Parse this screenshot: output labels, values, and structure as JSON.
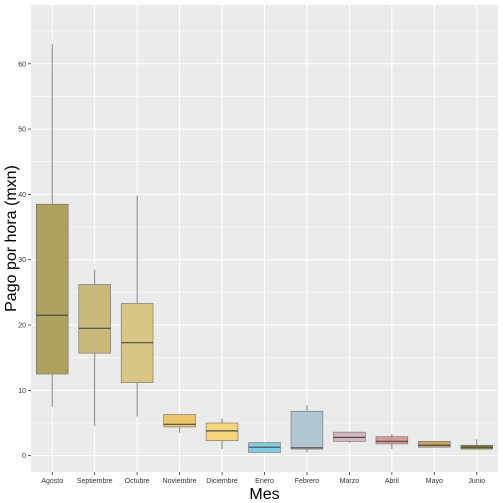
{
  "chart_data": {
    "type": "box",
    "xlabel": "Mes",
    "ylabel": "Pago por hora (mxn)",
    "ylim": [
      -2.5,
      69
    ],
    "yticks": [
      0,
      10,
      20,
      30,
      40,
      50,
      60
    ],
    "categories": [
      "Agosto",
      "Septiembre",
      "Octubre",
      "Noviembre",
      "Diciembre",
      "Enero",
      "Febrero",
      "Marzo",
      "Abril",
      "Mayo",
      "Junio"
    ],
    "boxes": [
      {
        "label": "Agosto",
        "min": 7.5,
        "q1": 12.5,
        "median": 21.5,
        "q3": 38.5,
        "max": 63.0,
        "color": "#ada35e"
      },
      {
        "label": "Septiembre",
        "min": 4.5,
        "q1": 15.7,
        "median": 19.5,
        "q3": 26.2,
        "max": 28.5,
        "color": "#c8b97a"
      },
      {
        "label": "Octubre",
        "min": 6.0,
        "q1": 11.2,
        "median": 17.3,
        "q3": 23.3,
        "max": 39.8,
        "color": "#d9c584"
      },
      {
        "label": "Noviembre",
        "min": 3.5,
        "q1": 4.4,
        "median": 4.8,
        "q3": 6.3,
        "max": 6.3,
        "color": "#ebc76a"
      },
      {
        "label": "Diciembre",
        "min": 1.0,
        "q1": 2.3,
        "median": 3.8,
        "q3": 5.0,
        "max": 5.7,
        "color": "#f5d67c"
      },
      {
        "label": "Enero",
        "min": 0.5,
        "q1": 0.5,
        "median": 1.3,
        "q3": 2.0,
        "max": 2.0,
        "color": "#7fcbe0"
      },
      {
        "label": "Febrero",
        "min": 0.5,
        "q1": 1.0,
        "median": 1.2,
        "q3": 6.8,
        "max": 7.7,
        "color": "#b3c7d2"
      },
      {
        "label": "Marzo",
        "min": 2.0,
        "q1": 2.2,
        "median": 2.8,
        "q3": 3.6,
        "max": 3.6,
        "color": "#d8b6c0"
      },
      {
        "label": "Abril",
        "min": 1.0,
        "q1": 1.8,
        "median": 2.2,
        "q3": 2.9,
        "max": 3.3,
        "color": "#d99b94"
      },
      {
        "label": "Mayo",
        "min": 1.3,
        "q1": 1.3,
        "median": 1.6,
        "q3": 2.2,
        "max": 2.2,
        "color": "#c9a467"
      },
      {
        "label": "Junio",
        "min": 1.0,
        "q1": 1.0,
        "median": 1.3,
        "q3": 1.6,
        "max": 2.5,
        "color": "#8c8a3e"
      }
    ],
    "grid": true,
    "panel_color": "#ebebeb",
    "grid_color": "#ffffff"
  }
}
